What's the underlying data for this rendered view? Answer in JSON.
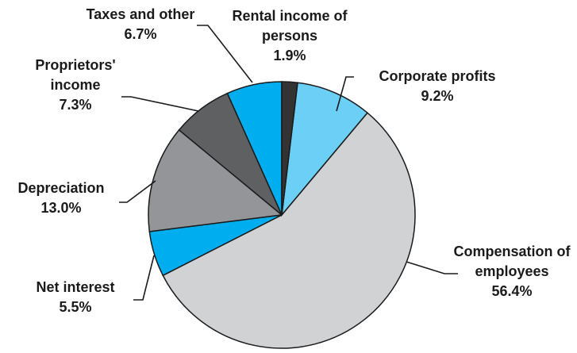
{
  "chart_data": {
    "type": "pie",
    "categories": [
      "Rental income of persons",
      "Corporate profits",
      "Compensation of employees",
      "Net interest",
      "Depreciation",
      "Proprietors' income",
      "Taxes and other"
    ],
    "values": [
      1.9,
      9.2,
      56.4,
      5.5,
      13.0,
      7.3,
      6.7
    ],
    "value_labels": [
      "1.9%",
      "9.2%",
      "56.4%",
      "5.5%",
      "13.0%",
      "7.3%",
      "6.7%"
    ],
    "colors": [
      "#333333",
      "#6ccff6",
      "#d1d2d4",
      "#00aeef",
      "#939598",
      "#5f6062",
      "#00aeef"
    ]
  }
}
